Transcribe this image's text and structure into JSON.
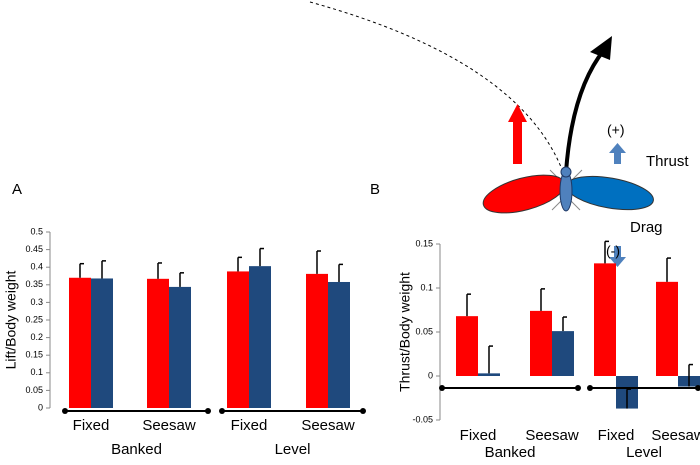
{
  "chart_data": [
    {
      "type": "bar",
      "panel": "A",
      "ylabel": "Lift/Body weight",
      "categories": [
        "Fixed",
        "Seesaw",
        "Fixed",
        "Seesaw"
      ],
      "groups": [
        "Banked",
        "Level"
      ],
      "series": [
        {
          "color": "#ff0000",
          "values": [
            0.37,
            0.367,
            0.388,
            0.381
          ],
          "errors": [
            0.04,
            0.045,
            0.04,
            0.065
          ]
        },
        {
          "color": "#1f497d",
          "values": [
            0.368,
            0.344,
            0.403,
            0.358
          ],
          "errors": [
            0.05,
            0.04,
            0.05,
            0.05
          ]
        }
      ],
      "ylim": [
        0,
        0.5
      ],
      "yticks": [
        0,
        0.05,
        0.1,
        0.15,
        0.2,
        0.25,
        0.3,
        0.35,
        0.4,
        0.45,
        0.5
      ]
    },
    {
      "type": "bar",
      "panel": "B",
      "ylabel": "Thrust/Body weight",
      "categories": [
        "Fixed",
        "Seesaw",
        "Fixed",
        "Seesaw"
      ],
      "groups": [
        "Banked",
        "Level"
      ],
      "series": [
        {
          "color": "#ff0000",
          "values": [
            0.068,
            0.074,
            0.128,
            0.107
          ],
          "errors": [
            0.025,
            0.025,
            0.025,
            0.027
          ]
        },
        {
          "color": "#1f497d",
          "values": [
            0.003,
            0.051,
            -0.037,
            -0.012
          ],
          "errors": [
            0.031,
            0.016,
            0.022,
            0.025
          ]
        }
      ],
      "ylim": [
        -0.05,
        0.15
      ],
      "yticks": [
        -0.05,
        0,
        0.05,
        0.1,
        0.15
      ]
    }
  ],
  "diagram": {
    "plus": "(+)",
    "thrust": "Thrust",
    "drag": "Drag",
    "minus": "(-)"
  }
}
